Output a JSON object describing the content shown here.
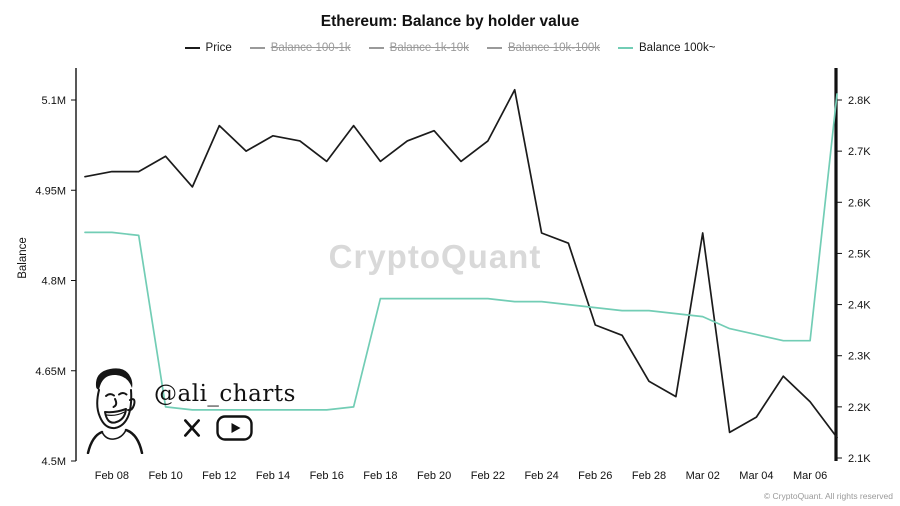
{
  "title": "Ethereum: Balance by holder value",
  "y_axis_title": "Balance",
  "watermark": "CryptoQuant",
  "copyright": "© CryptoQuant. All rights reserved",
  "author": {
    "handle": "@ali_charts",
    "icons": [
      "x-twitter-icon",
      "youtube-icon"
    ]
  },
  "legend": [
    {
      "label": "Price",
      "color": "#1b1b1b",
      "active": true
    },
    {
      "label": "Balance 100-1k",
      "color": "#9a9a9a",
      "active": false
    },
    {
      "label": "Balance 1k-10k",
      "color": "#9a9a9a",
      "active": false
    },
    {
      "label": "Balance 10k-100k",
      "color": "#9a9a9a",
      "active": false
    },
    {
      "label": "Balance 100k~",
      "color": "#72cdb5",
      "active": true
    }
  ],
  "chart_data": {
    "type": "line",
    "title": "Ethereum: Balance by holder value",
    "grid": false,
    "legend_position": "top",
    "x": [
      "Feb 07",
      "Feb 08",
      "Feb 09",
      "Feb 10",
      "Feb 11",
      "Feb 12",
      "Feb 13",
      "Feb 14",
      "Feb 15",
      "Feb 16",
      "Feb 17",
      "Feb 18",
      "Feb 19",
      "Feb 20",
      "Feb 21",
      "Feb 22",
      "Feb 23",
      "Feb 24",
      "Feb 25",
      "Feb 26",
      "Feb 27",
      "Feb 28",
      "Mar 01",
      "Mar 02",
      "Mar 03",
      "Mar 04",
      "Mar 05",
      "Mar 06",
      "Mar 07"
    ],
    "x_ticks": [
      "Feb 08",
      "Feb 10",
      "Feb 12",
      "Feb 14",
      "Feb 16",
      "Feb 18",
      "Feb 20",
      "Feb 22",
      "Feb 24",
      "Feb 26",
      "Feb 28",
      "Mar 02",
      "Mar 04",
      "Mar 06"
    ],
    "y_left": {
      "label": "Balance",
      "unit": "M",
      "min": 4.5,
      "max": 5.1,
      "ticks": [
        {
          "v": 4.5,
          "label": "4.5M"
        },
        {
          "v": 4.65,
          "label": "4.65M"
        },
        {
          "v": 4.8,
          "label": "4.8M"
        },
        {
          "v": 4.95,
          "label": "4.95M"
        },
        {
          "v": 5.1,
          "label": "5.1M"
        }
      ]
    },
    "y_right": {
      "label": "Price",
      "unit": "K",
      "min": 2.1,
      "max": 2.8,
      "ticks": [
        {
          "v": 2.1,
          "label": "2.1K"
        },
        {
          "v": 2.2,
          "label": "2.2K"
        },
        {
          "v": 2.3,
          "label": "2.3K"
        },
        {
          "v": 2.4,
          "label": "2.4K"
        },
        {
          "v": 2.5,
          "label": "2.5K"
        },
        {
          "v": 2.6,
          "label": "2.6K"
        },
        {
          "v": 2.7,
          "label": "2.7K"
        },
        {
          "v": 2.8,
          "label": "2.8K"
        }
      ]
    },
    "series": [
      {
        "name": "Price",
        "axis": "right",
        "color": "#1b1b1b",
        "values": [
          2.65,
          2.66,
          2.66,
          2.69,
          2.63,
          2.75,
          2.7,
          2.73,
          2.72,
          2.68,
          2.75,
          2.68,
          2.72,
          2.74,
          2.68,
          2.72,
          2.82,
          2.54,
          2.52,
          2.36,
          2.34,
          2.25,
          2.22,
          2.54,
          2.15,
          2.18,
          2.26,
          2.21,
          2.14
        ]
      },
      {
        "name": "Balance 100k~",
        "axis": "left",
        "color": "#72cdb5",
        "values": [
          4.88,
          4.88,
          4.875,
          4.59,
          4.585,
          4.585,
          4.585,
          4.585,
          4.585,
          4.585,
          4.59,
          4.77,
          4.77,
          4.77,
          4.77,
          4.77,
          4.765,
          4.765,
          4.76,
          4.755,
          4.75,
          4.75,
          4.745,
          4.74,
          4.72,
          4.71,
          4.7,
          4.7,
          5.11
        ]
      }
    ],
    "hidden_series": [
      "Balance 100-1k",
      "Balance 1k-10k",
      "Balance 10k-100k"
    ]
  }
}
